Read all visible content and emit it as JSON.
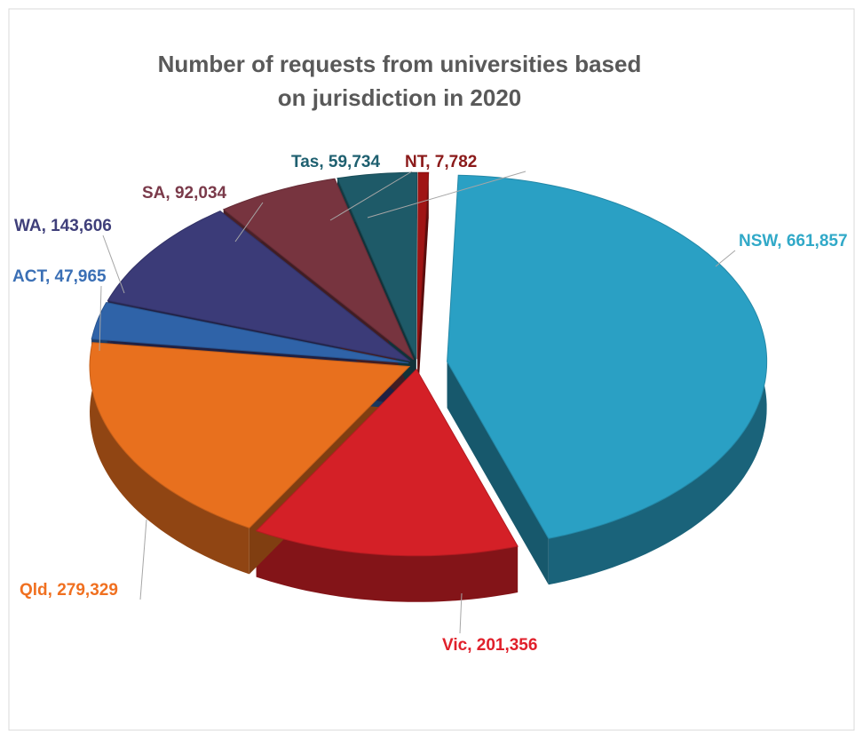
{
  "chart_data": {
    "type": "pie",
    "title": "Number of requests from universities based on jurisdiction in 2020",
    "categories": [
      "NSW",
      "Vic",
      "Qld",
      "ACT",
      "WA",
      "SA",
      "Tas",
      "NT"
    ],
    "values": [
      661857,
      201356,
      279329,
      47965,
      143606,
      92034,
      59734,
      7782
    ],
    "value_labels": [
      "661,857",
      "201,356",
      "279,329",
      "47,965",
      "143,606",
      "92,034",
      "59,734",
      "7,782"
    ],
    "label_separator": ", ",
    "colors": [
      "#2aa0c4",
      "#d42027",
      "#e8701e",
      "#2f63a8",
      "#3b3b78",
      "#77343f",
      "#1e5a68",
      "#a01515"
    ]
  }
}
